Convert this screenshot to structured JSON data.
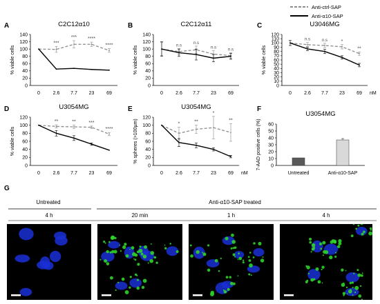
{
  "legend": {
    "ctrl_label": "Anti-ctrl-SAP",
    "a10_label": "Anti-α10-SAP"
  },
  "colors": {
    "ctrl": "#8c8c8c",
    "a10": "#000000",
    "bar_untreated": "#595959",
    "bar_treated": "#d9d9d9",
    "micro_nucleus": "#1a2fd6",
    "micro_signal": "#2fd12a"
  },
  "panel_g": {
    "letter": "G",
    "untreated_label": "Untreated",
    "treated_label": "Anti-α10-SAP treated",
    "time_labels": [
      "4 h",
      "20 min",
      "1 h",
      "4 h"
    ]
  },
  "chart_data": [
    {
      "panel": "A",
      "type": "line",
      "title": "C2C12α10",
      "xlabel": "",
      "ylabel": "% viable cells",
      "categories": [
        "0",
        "2.6",
        "7.7",
        "23",
        "69"
      ],
      "unit": "",
      "ylim": [
        0,
        140
      ],
      "yticks": [
        0,
        20,
        40,
        60,
        80,
        100,
        120,
        140
      ],
      "series": [
        {
          "name": "Anti-ctrl-SAP",
          "values": [
            100,
            99,
            113,
            113,
            96
          ],
          "errors": [
            0,
            8,
            10,
            6,
            5
          ]
        },
        {
          "name": "Anti-α10-SAP",
          "values": [
            100,
            45,
            47,
            44,
            42
          ],
          "errors": [
            0,
            0,
            0,
            0,
            0
          ]
        }
      ],
      "significance": [
        "",
        "***",
        "***",
        "****",
        "****"
      ]
    },
    {
      "panel": "B",
      "type": "line",
      "title": "C2C12α11",
      "xlabel": "",
      "ylabel": "% viable cells",
      "categories": [
        "0",
        "2.6",
        "7.7",
        "23",
        "69"
      ],
      "unit": "",
      "ylim": [
        0,
        140
      ],
      "yticks": [
        0,
        20,
        40,
        60,
        80,
        100,
        120,
        140
      ],
      "series": [
        {
          "name": "Anti-ctrl-SAP",
          "values": [
            100,
            93,
            98,
            86,
            82
          ],
          "errors": [
            18,
            8,
            10,
            10,
            8
          ]
        },
        {
          "name": "Anti-α10-SAP",
          "values": [
            100,
            90,
            85,
            75,
            80
          ],
          "errors": [
            20,
            10,
            15,
            10,
            8
          ]
        }
      ],
      "significance": [
        "",
        "n.s",
        "n.s",
        "n.s",
        "n.s"
      ]
    },
    {
      "panel": "C",
      "type": "line",
      "title": "U3046MG",
      "xlabel": "",
      "ylabel": "% viable cells",
      "categories": [
        "0",
        "2.6",
        "7.7",
        "23",
        "69"
      ],
      "unit": "nM",
      "ylim": [
        0,
        120
      ],
      "yticks": [
        0,
        10,
        20,
        30,
        40,
        50,
        60,
        70,
        80,
        90,
        100,
        110,
        120
      ],
      "series": [
        {
          "name": "Anti-ctrl-SAP",
          "values": [
            100,
            96,
            94,
            91,
            75
          ],
          "errors": [
            0,
            5,
            5,
            5,
            4
          ]
        },
        {
          "name": "Anti-α10-SAP",
          "values": [
            100,
            86,
            80,
            66,
            48
          ],
          "errors": [
            6,
            4,
            5,
            4,
            4
          ]
        }
      ],
      "significance": [
        "",
        "n.s",
        "n.s",
        "*",
        "**"
      ]
    },
    {
      "panel": "D",
      "type": "line",
      "title": "U3054MG",
      "xlabel": "",
      "ylabel": "% viable cells",
      "categories": [
        "0",
        "2.6",
        "7.7",
        "23",
        "69"
      ],
      "unit": "",
      "ylim": [
        0,
        120
      ],
      "yticks": [
        0,
        20,
        40,
        60,
        80,
        100,
        120
      ],
      "series": [
        {
          "name": "Anti-ctrl-SAP",
          "values": [
            100,
            97,
            96,
            95,
            78
          ],
          "errors": [
            0,
            4,
            4,
            3,
            4
          ]
        },
        {
          "name": "Anti-α10-SAP",
          "values": [
            100,
            80,
            68,
            53,
            38
          ],
          "errors": [
            0,
            7,
            6,
            3,
            0
          ]
        }
      ],
      "significance": [
        "",
        "**",
        "**",
        "***",
        "****"
      ]
    },
    {
      "panel": "E",
      "type": "line",
      "title": "U3054MG",
      "xlabel": "",
      "ylabel": "% spheres (>100µm)",
      "categories": [
        "0",
        "2.6",
        "7.7",
        "23",
        "69"
      ],
      "unit": "nM",
      "ylim": [
        0,
        120
      ],
      "yticks": [
        0,
        20,
        40,
        60,
        80,
        100,
        120
      ],
      "series": [
        {
          "name": "Anti-ctrl-SAP",
          "values": [
            100,
            80,
            90,
            94,
            82
          ],
          "errors": [
            0,
            15,
            10,
            28,
            22
          ]
        },
        {
          "name": "Anti-α10-SAP",
          "values": [
            100,
            57,
            50,
            40,
            22
          ],
          "errors": [
            0,
            10,
            6,
            4,
            3
          ]
        }
      ],
      "significance": [
        "",
        "*",
        "**",
        "*",
        "**"
      ]
    },
    {
      "panel": "F",
      "type": "bar",
      "title": "U3054MG",
      "xlabel": "",
      "ylabel": "7-AAD positive cells (%)",
      "categories": [
        "Untreated",
        "Anti-α10-SAP"
      ],
      "values": [
        11,
        37
      ],
      "errors": [
        0,
        2
      ],
      "ylim": [
        0,
        60
      ],
      "yticks": [
        0,
        10,
        20,
        30,
        40,
        50,
        60
      ]
    }
  ]
}
